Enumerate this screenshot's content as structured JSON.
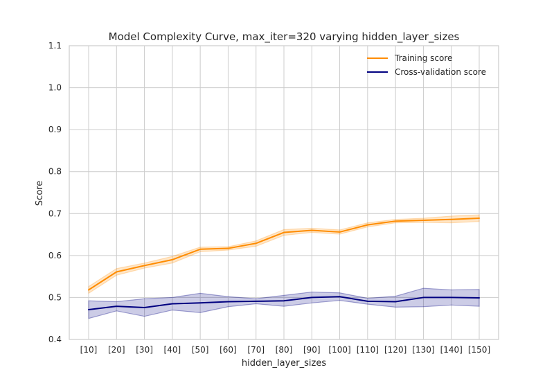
{
  "chart_data": {
    "type": "line",
    "title": "Model Complexity Curve, max_iter=320 varying hidden_layer_sizes",
    "xlabel": "hidden_layer_sizes",
    "ylabel": "Score",
    "categories": [
      "[10]",
      "[20]",
      "[30]",
      "[40]",
      "[50]",
      "[60]",
      "[70]",
      "[80]",
      "[90]",
      "[100]",
      "[110]",
      "[120]",
      "[130]",
      "[140]",
      "[150]"
    ],
    "ylim": [
      0.4,
      1.1
    ],
    "yticks": [
      "0.4",
      "0.5",
      "0.6",
      "0.7",
      "0.8",
      "0.9",
      "1.0",
      "1.1"
    ],
    "grid": true,
    "legend_position": "top-right",
    "series": [
      {
        "name": "Training score",
        "color": "#ff8c00",
        "values": [
          0.518,
          0.561,
          0.576,
          0.59,
          0.615,
          0.617,
          0.629,
          0.655,
          0.66,
          0.656,
          0.673,
          0.682,
          0.684,
          0.686,
          0.689
        ],
        "upper": [
          0.526,
          0.569,
          0.582,
          0.598,
          0.62,
          0.621,
          0.635,
          0.662,
          0.665,
          0.661,
          0.678,
          0.686,
          0.689,
          0.694,
          0.697
        ],
        "lower": [
          0.51,
          0.553,
          0.57,
          0.582,
          0.609,
          0.613,
          0.622,
          0.648,
          0.655,
          0.651,
          0.668,
          0.678,
          0.679,
          0.678,
          0.681
        ]
      },
      {
        "name": "Cross-validation score",
        "color": "#000080",
        "values": [
          0.471,
          0.479,
          0.476,
          0.485,
          0.487,
          0.49,
          0.491,
          0.492,
          0.5,
          0.502,
          0.491,
          0.49,
          0.5,
          0.5,
          0.499
        ],
        "upper": [
          0.492,
          0.49,
          0.497,
          0.5,
          0.51,
          0.502,
          0.497,
          0.505,
          0.513,
          0.511,
          0.498,
          0.503,
          0.522,
          0.518,
          0.519
        ],
        "lower": [
          0.45,
          0.468,
          0.455,
          0.47,
          0.464,
          0.478,
          0.485,
          0.479,
          0.487,
          0.493,
          0.484,
          0.477,
          0.478,
          0.482,
          0.479
        ]
      }
    ]
  }
}
